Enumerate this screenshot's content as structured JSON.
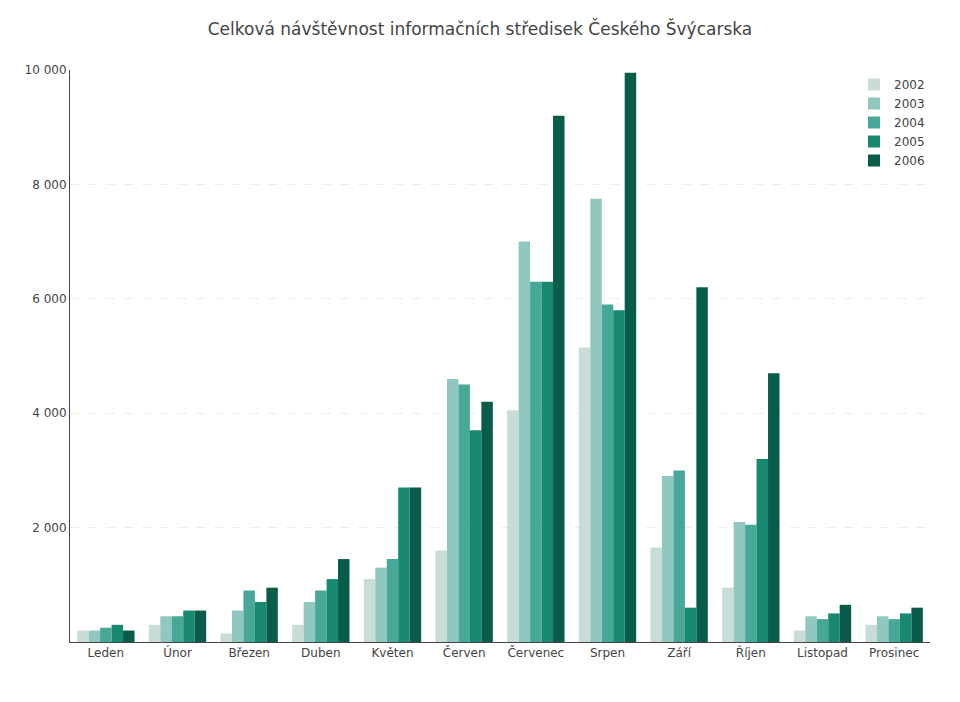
{
  "chart_data": {
    "type": "bar",
    "title": "Celková návštěvnost informačních středisek Českého Švýcarska",
    "categories": [
      "Leden",
      "Únor",
      "Březen",
      "Duben",
      "Květen",
      "Červen",
      "Červenec",
      "Srpen",
      "Září",
      "Říjen",
      "Listopad",
      "Prosinec"
    ],
    "series": [
      {
        "name": "2002",
        "color": "#c8ddd8",
        "values": [
          200,
          300,
          150,
          300,
          1100,
          1600,
          4050,
          5150,
          1650,
          950,
          200,
          300
        ]
      },
      {
        "name": "2003",
        "color": "#90c8c0",
        "values": [
          200,
          450,
          550,
          700,
          1300,
          4600,
          7000,
          7750,
          2900,
          2100,
          450,
          450
        ]
      },
      {
        "name": "2004",
        "color": "#48a898",
        "values": [
          250,
          450,
          900,
          900,
          1450,
          4500,
          6300,
          5900,
          3000,
          2050,
          400,
          400
        ]
      },
      {
        "name": "2005",
        "color": "#188870",
        "values": [
          300,
          550,
          700,
          1100,
          2700,
          3700,
          6300,
          5800,
          600,
          3200,
          500,
          500
        ]
      },
      {
        "name": "2006",
        "color": "#0a5c4a",
        "values": [
          200,
          550,
          950,
          1450,
          2700,
          4200,
          9200,
          9950,
          6200,
          4700,
          650,
          600
        ]
      }
    ],
    "ylim": [
      0,
      10000
    ],
    "yticks": [
      {
        "value": 2000,
        "label": "2 000"
      },
      {
        "value": 4000,
        "label": "4 000"
      },
      {
        "value": 6000,
        "label": "6 000"
      },
      {
        "value": 8000,
        "label": "8 000"
      },
      {
        "value": 10000,
        "label": "10 000"
      }
    ],
    "grid": true,
    "legend": "upper right"
  }
}
